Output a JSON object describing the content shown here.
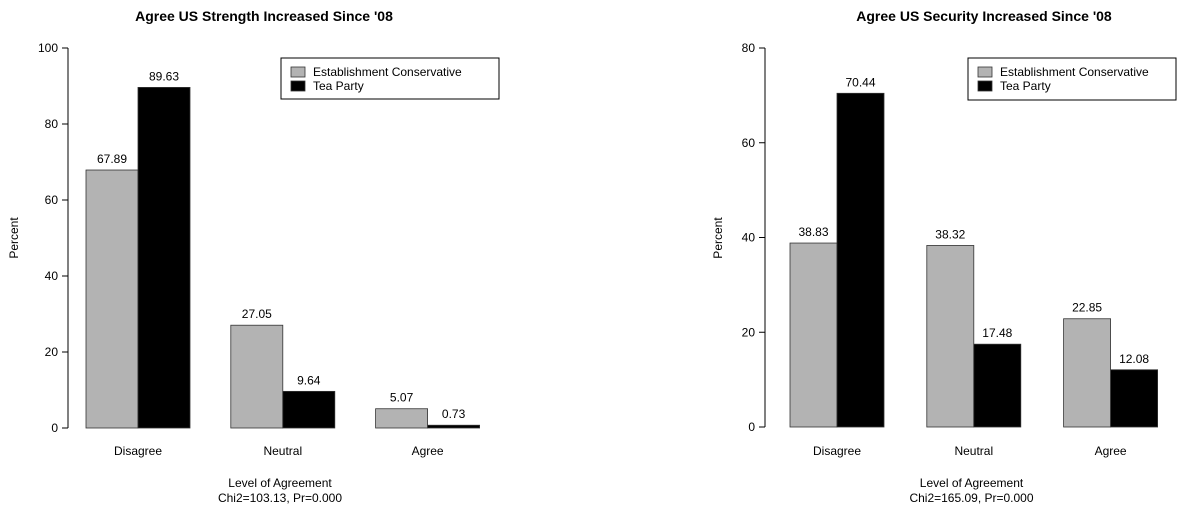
{
  "chart_data": [
    {
      "type": "bar",
      "title": "Agree US Strength Increased Since '08",
      "xlabel": "Level of Agreement",
      "subtitle": "Chi2=103.13, Pr=0.000",
      "ylabel": "Percent",
      "ylim": [
        0,
        100
      ],
      "yticks": [
        0,
        20,
        40,
        60,
        80,
        100
      ],
      "categories": [
        "Disagree",
        "Neutral",
        "Agree"
      ],
      "series": [
        {
          "name": "Establishment Conservative",
          "color": "#b3b3b3",
          "values": [
            67.89,
            27.05,
            5.07
          ],
          "labels": [
            "67.89",
            "27.05",
            "5.07"
          ]
        },
        {
          "name": "Tea Party",
          "color": "#000000",
          "values": [
            89.63,
            9.64,
            0.73
          ],
          "labels": [
            "89.63",
            "9.64",
            "0.73"
          ]
        }
      ],
      "legend": "top-right",
      "grid": false
    },
    {
      "type": "bar",
      "title": "Agree US Security Increased Since '08",
      "xlabel": "Level of Agreement",
      "subtitle": "Chi2=165.09, Pr=0.000",
      "ylabel": "Percent",
      "ylim": [
        0,
        80
      ],
      "yticks": [
        0,
        20,
        40,
        60,
        80
      ],
      "categories": [
        "Disagree",
        "Neutral",
        "Agree"
      ],
      "series": [
        {
          "name": "Establishment Conservative",
          "color": "#b3b3b3",
          "values": [
            38.83,
            38.32,
            22.85
          ],
          "labels": [
            "38.83",
            "38.32",
            "22.85"
          ]
        },
        {
          "name": "Tea Party",
          "color": "#000000",
          "values": [
            70.44,
            17.48,
            12.08
          ],
          "labels": [
            "70.44",
            "17.48",
            "12.08"
          ]
        }
      ],
      "legend": "top-right",
      "grid": false
    }
  ]
}
